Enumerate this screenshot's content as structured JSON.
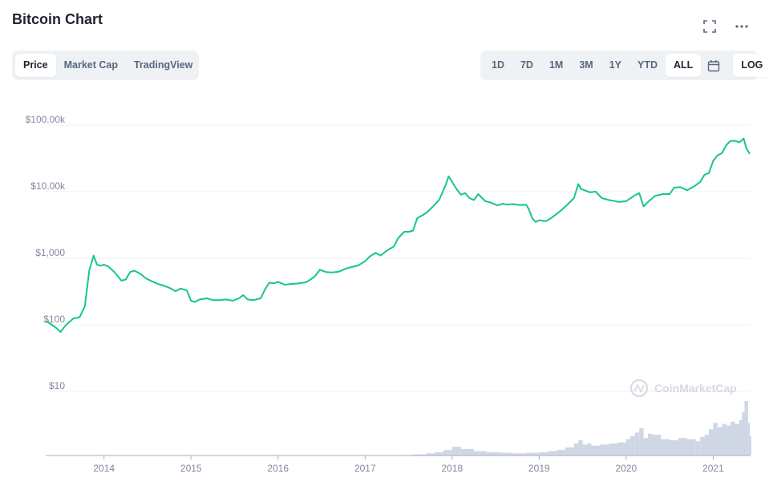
{
  "header": {
    "title": "Bitcoin Chart",
    "icons": [
      "fullscreen-icon",
      "more-icon"
    ]
  },
  "tabs": [
    {
      "label": "Price",
      "active": true
    },
    {
      "label": "Market Cap",
      "active": false
    },
    {
      "label": "TradingView",
      "active": false
    }
  ],
  "ranges": [
    {
      "label": "1D",
      "active": false
    },
    {
      "label": "7D",
      "active": false
    },
    {
      "label": "1M",
      "active": false
    },
    {
      "label": "3M",
      "active": false
    },
    {
      "label": "1Y",
      "active": false
    },
    {
      "label": "YTD",
      "active": false
    },
    {
      "label": "ALL",
      "active": true
    }
  ],
  "calendar_icon": "calendar-icon",
  "log_label": "LOG",
  "watermark": "CoinMarketCap",
  "colors": {
    "line": "#16c784",
    "volume": "#cfd6e4",
    "grid": "#eff2f5",
    "axis_text": "#808a9d"
  },
  "chart_data": {
    "type": "line",
    "scale": "log",
    "ylim": [
      5,
      100000
    ],
    "y_ticks": [
      {
        "value": 100000,
        "label": "$100.00k"
      },
      {
        "value": 10000,
        "label": "$10.00k"
      },
      {
        "value": 1000,
        "label": "$1,000"
      },
      {
        "value": 100,
        "label": "$100"
      },
      {
        "value": 10,
        "label": "$10"
      }
    ],
    "x_ticks": [
      "2014",
      "2015",
      "2016",
      "2017",
      "2018",
      "2019",
      "2020",
      "2021"
    ],
    "xlim": [
      2013.33,
      2021.42
    ],
    "series": [
      {
        "x": [
          2013.33,
          2013.4,
          2013.45,
          2013.5,
          2013.55,
          2013.6,
          2013.65,
          2013.72,
          2013.78,
          2013.83,
          2013.88,
          2013.92,
          2013.96,
          2014.0,
          2014.05,
          2014.12,
          2014.2,
          2014.25,
          2014.3,
          2014.35,
          2014.42,
          2014.48,
          2014.55,
          2014.62,
          2014.68,
          2014.75,
          2014.82,
          2014.88,
          2014.95,
          2015.0,
          2015.04,
          2015.1,
          2015.18,
          2015.25,
          2015.33,
          2015.4,
          2015.48,
          2015.55,
          2015.6,
          2015.65,
          2015.72,
          2015.8,
          2015.85,
          2015.9,
          2015.95,
          2016.0,
          2016.08,
          2016.15,
          2016.25,
          2016.33,
          2016.42,
          2016.48,
          2016.55,
          2016.62,
          2016.7,
          2016.78,
          2016.85,
          2016.92,
          2017.0,
          2017.05,
          2017.12,
          2017.18,
          2017.25,
          2017.33,
          2017.38,
          2017.45,
          2017.5,
          2017.55,
          2017.6,
          2017.67,
          2017.72,
          2017.78,
          2017.85,
          2017.92,
          2017.96,
          2018.0,
          2018.05,
          2018.1,
          2018.15,
          2018.2,
          2018.25,
          2018.3,
          2018.38,
          2018.45,
          2018.52,
          2018.58,
          2018.63,
          2018.7,
          2018.78,
          2018.85,
          2018.88,
          2018.92,
          2018.96,
          2019.0,
          2019.08,
          2019.15,
          2019.25,
          2019.33,
          2019.4,
          2019.45,
          2019.48,
          2019.52,
          2019.58,
          2019.65,
          2019.72,
          2019.8,
          2019.85,
          2019.92,
          2020.0,
          2020.1,
          2020.15,
          2020.2,
          2020.25,
          2020.33,
          2020.42,
          2020.5,
          2020.55,
          2020.62,
          2020.7,
          2020.78,
          2020.85,
          2020.9,
          2020.95,
          2021.0,
          2021.05,
          2021.1,
          2021.15,
          2021.2,
          2021.25,
          2021.3,
          2021.35,
          2021.38,
          2021.42
        ],
        "y": [
          115,
          100,
          90,
          78,
          95,
          110,
          125,
          130,
          190,
          650,
          1100,
          800,
          770,
          800,
          750,
          620,
          460,
          480,
          620,
          650,
          580,
          500,
          450,
          410,
          390,
          360,
          320,
          350,
          330,
          230,
          220,
          240,
          250,
          235,
          235,
          240,
          230,
          250,
          280,
          240,
          235,
          250,
          340,
          430,
          420,
          440,
          400,
          410,
          420,
          440,
          530,
          670,
          620,
          610,
          630,
          700,
          740,
          780,
          900,
          1050,
          1200,
          1100,
          1300,
          1500,
          2000,
          2500,
          2500,
          2600,
          4000,
          4500,
          5000,
          6000,
          7500,
          12000,
          17000,
          14000,
          11000,
          9000,
          9500,
          8000,
          7500,
          9200,
          7200,
          6800,
          6200,
          6600,
          6400,
          6500,
          6300,
          6400,
          5500,
          4000,
          3500,
          3700,
          3600,
          4100,
          5200,
          6500,
          8000,
          13000,
          11000,
          10500,
          9800,
          10000,
          8000,
          7500,
          7300,
          7000,
          7200,
          8800,
          9500,
          6000,
          7000,
          8600,
          9200,
          9200,
          11500,
          11700,
          10500,
          12000,
          14000,
          18000,
          19000,
          29000,
          35000,
          38000,
          50000,
          58000,
          58000,
          55000,
          63000,
          45000,
          37000
        ]
      }
    ],
    "volume": {
      "x": [
        2017.42,
        2017.55,
        2017.7,
        2017.8,
        2017.9,
        2018.0,
        2018.1,
        2018.25,
        2018.4,
        2018.55,
        2018.7,
        2018.85,
        2019.0,
        2019.1,
        2019.2,
        2019.3,
        2019.4,
        2019.45,
        2019.5,
        2019.55,
        2019.6,
        2019.7,
        2019.8,
        2019.9,
        2020.0,
        2020.05,
        2020.1,
        2020.15,
        2020.2,
        2020.25,
        2020.3,
        2020.4,
        2020.5,
        2020.6,
        2020.7,
        2020.8,
        2020.85,
        2020.9,
        2020.95,
        2021.0,
        2021.05,
        2021.1,
        2021.15,
        2021.2,
        2021.25,
        2021.3,
        2021.33,
        2021.36,
        2021.4,
        2021.42
      ],
      "y": [
        0.01,
        0.02,
        0.04,
        0.06,
        0.1,
        0.16,
        0.12,
        0.08,
        0.06,
        0.05,
        0.04,
        0.05,
        0.06,
        0.08,
        0.1,
        0.15,
        0.22,
        0.28,
        0.2,
        0.22,
        0.18,
        0.2,
        0.22,
        0.24,
        0.3,
        0.36,
        0.42,
        0.5,
        0.32,
        0.4,
        0.38,
        0.3,
        0.28,
        0.32,
        0.3,
        0.26,
        0.34,
        0.38,
        0.48,
        0.6,
        0.52,
        0.58,
        0.55,
        0.62,
        0.58,
        0.65,
        0.8,
        1.0,
        0.6,
        0.35
      ]
    }
  }
}
